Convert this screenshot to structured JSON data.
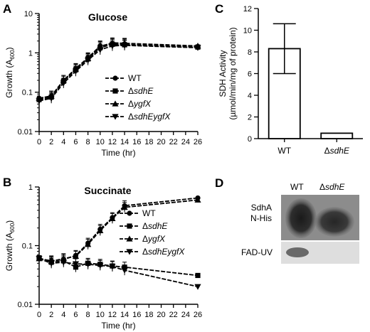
{
  "chart_data": [
    {
      "type": "line",
      "panel": "A",
      "title": "Glucose",
      "xlabel": "Time (hr)",
      "ylabel": "Growth (A600)",
      "ylabel_main": "Growth (A",
      "ylabel_sub": "600",
      "ylabel_end": ")",
      "yscale": "log",
      "xlim": [
        0,
        26
      ],
      "ylim": [
        0.01,
        10
      ],
      "xticks": [
        0,
        2,
        4,
        6,
        8,
        10,
        12,
        14,
        16,
        18,
        20,
        22,
        24,
        26
      ],
      "yticks": [
        {
          "v": 0.01,
          "label": "0.01"
        },
        {
          "v": 0.1,
          "label": "0.1"
        },
        {
          "v": 1,
          "label": "1"
        },
        {
          "v": 10,
          "label": "10"
        }
      ],
      "x": [
        0,
        2,
        4,
        6,
        8,
        10,
        12,
        14,
        26
      ],
      "series": [
        {
          "name": "WT",
          "marker": "circle",
          "values": [
            0.07,
            0.08,
            0.2,
            0.4,
            0.75,
            1.5,
            1.7,
            1.7,
            1.45
          ]
        },
        {
          "name": "ΔsdhE",
          "name_prefix": "Δ",
          "name_italic": "sdhE",
          "marker": "square",
          "values": [
            0.065,
            0.075,
            0.19,
            0.37,
            0.7,
            1.35,
            1.65,
            1.6,
            1.4
          ]
        },
        {
          "name": "ΔygfX",
          "name_prefix": "Δ",
          "name_italic": "ygfX",
          "marker": "triangle-up",
          "values": [
            0.07,
            0.08,
            0.2,
            0.39,
            0.72,
            1.45,
            1.8,
            1.75,
            1.5
          ]
        },
        {
          "name": "ΔsdhEygfX",
          "name_prefix": "Δ",
          "name_italic": "sdhEygfX",
          "marker": "triangle-down",
          "values": [
            0.06,
            0.07,
            0.17,
            0.34,
            0.65,
            1.2,
            1.5,
            1.55,
            1.35
          ]
        }
      ]
    },
    {
      "type": "line",
      "panel": "B",
      "title": "Succinate",
      "xlabel": "Time (hr)",
      "ylabel": "Growth (A600)",
      "ylabel_main": "Growth (A",
      "ylabel_sub": "600",
      "ylabel_end": ")",
      "yscale": "log",
      "xlim": [
        0,
        26
      ],
      "ylim": [
        0.01,
        1
      ],
      "xticks": [
        0,
        2,
        4,
        6,
        8,
        10,
        12,
        14,
        16,
        18,
        20,
        22,
        24,
        26
      ],
      "yticks": [
        {
          "v": 0.01,
          "label": "0.01"
        },
        {
          "v": 0.1,
          "label": "0.1"
        },
        {
          "v": 1,
          "label": "1"
        }
      ],
      "x": [
        0,
        2,
        4,
        6,
        8,
        10,
        12,
        14,
        26
      ],
      "series": [
        {
          "name": "WT",
          "marker": "circle",
          "values": [
            0.06,
            0.055,
            0.058,
            0.068,
            0.11,
            0.19,
            0.3,
            0.48,
            0.65
          ]
        },
        {
          "name": "ΔsdhE",
          "name_prefix": "Δ",
          "name_italic": "sdhE",
          "marker": "square",
          "values": [
            0.062,
            0.052,
            0.055,
            0.043,
            0.05,
            0.048,
            0.045,
            0.043,
            0.031
          ]
        },
        {
          "name": "ΔygfX",
          "name_prefix": "Δ",
          "name_italic": "ygfX",
          "marker": "triangle-up",
          "values": [
            0.06,
            0.054,
            0.06,
            0.066,
            0.105,
            0.18,
            0.29,
            0.45,
            0.6
          ]
        },
        {
          "name": "ΔsdhEygfX",
          "name_prefix": "Δ",
          "name_italic": "sdhEygfX",
          "marker": "triangle-down",
          "values": [
            0.06,
            0.05,
            0.052,
            0.049,
            0.048,
            0.046,
            0.044,
            0.038,
            0.02
          ]
        }
      ]
    },
    {
      "type": "bar",
      "panel": "C",
      "ylabel_line1": "SDH Activity",
      "ylabel_line2": "(µmol/min/mg of protein)",
      "ylim": [
        0,
        12
      ],
      "yticks": [
        0,
        2,
        4,
        6,
        8,
        10,
        12
      ],
      "categories": [
        "WT",
        "ΔsdhE"
      ],
      "category_labels": [
        {
          "prefix": "",
          "italic": "",
          "plain": "WT"
        },
        {
          "prefix": "Δ",
          "italic": "sdhE",
          "plain": ""
        }
      ],
      "values": [
        8.3,
        0.5
      ],
      "errors": [
        2.3,
        0
      ]
    }
  ],
  "panel_d": {
    "label": "D",
    "col_wt": "WT",
    "col_mut_prefix": "Δ",
    "col_mut_italic": "sdhE",
    "row1_line1": "SdhA",
    "row1_line2": "N-His",
    "row2": "FAD-UV"
  }
}
